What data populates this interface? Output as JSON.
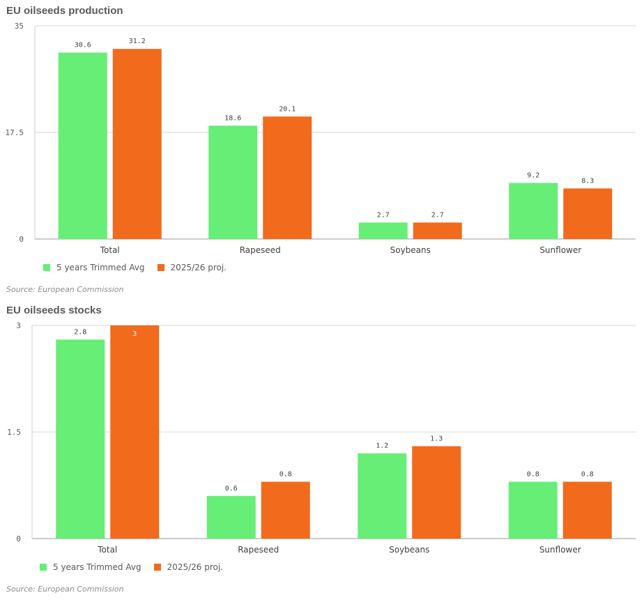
{
  "colors": {
    "series1": "#66ee77",
    "series2": "#f26a1b"
  },
  "chart_data": [
    {
      "type": "bar",
      "title": "EU oilseeds production",
      "categories": [
        "Total",
        "Rapeseed",
        "Soybeans",
        "Sunflower"
      ],
      "series": [
        {
          "name": "5 years Trimmed Avg",
          "values": [
            30.6,
            18.6,
            2.7,
            9.2
          ]
        },
        {
          "name": "2025/26 proj.",
          "values": [
            31.2,
            20.1,
            2.7,
            8.3
          ]
        }
      ],
      "labels": [
        [
          "30.6",
          "18.6",
          "2.7",
          "9.2"
        ],
        [
          "31.2",
          "20.1",
          "2.7",
          "8.3"
        ]
      ],
      "ylim": [
        0,
        35
      ],
      "yticks": [
        "0",
        "17.5",
        "35"
      ],
      "ytick_values": [
        0,
        17.5,
        35
      ],
      "grid": true,
      "legend_position": "bottom-left",
      "source": "Source: European Commission"
    },
    {
      "type": "bar",
      "title": "EU oilseeds stocks",
      "categories": [
        "Total",
        "Rapeseed",
        "Soybeans",
        "Sunflower"
      ],
      "series": [
        {
          "name": "5 years Trimmed Avg",
          "values": [
            2.8,
            0.6,
            1.2,
            0.8
          ]
        },
        {
          "name": "2025/26 proj.",
          "values": [
            3,
            0.8,
            1.3,
            0.8
          ]
        }
      ],
      "labels": [
        [
          "2.8",
          "0.6",
          "1.2",
          "0.8"
        ],
        [
          "3",
          "0.8",
          "1.3",
          "0.8"
        ]
      ],
      "ylim": [
        0,
        3
      ],
      "yticks": [
        "0",
        "1.5",
        "3"
      ],
      "ytick_values": [
        0,
        1.5,
        3
      ],
      "grid": true,
      "legend_position": "bottom-left",
      "source": "Source: European Commission"
    }
  ]
}
